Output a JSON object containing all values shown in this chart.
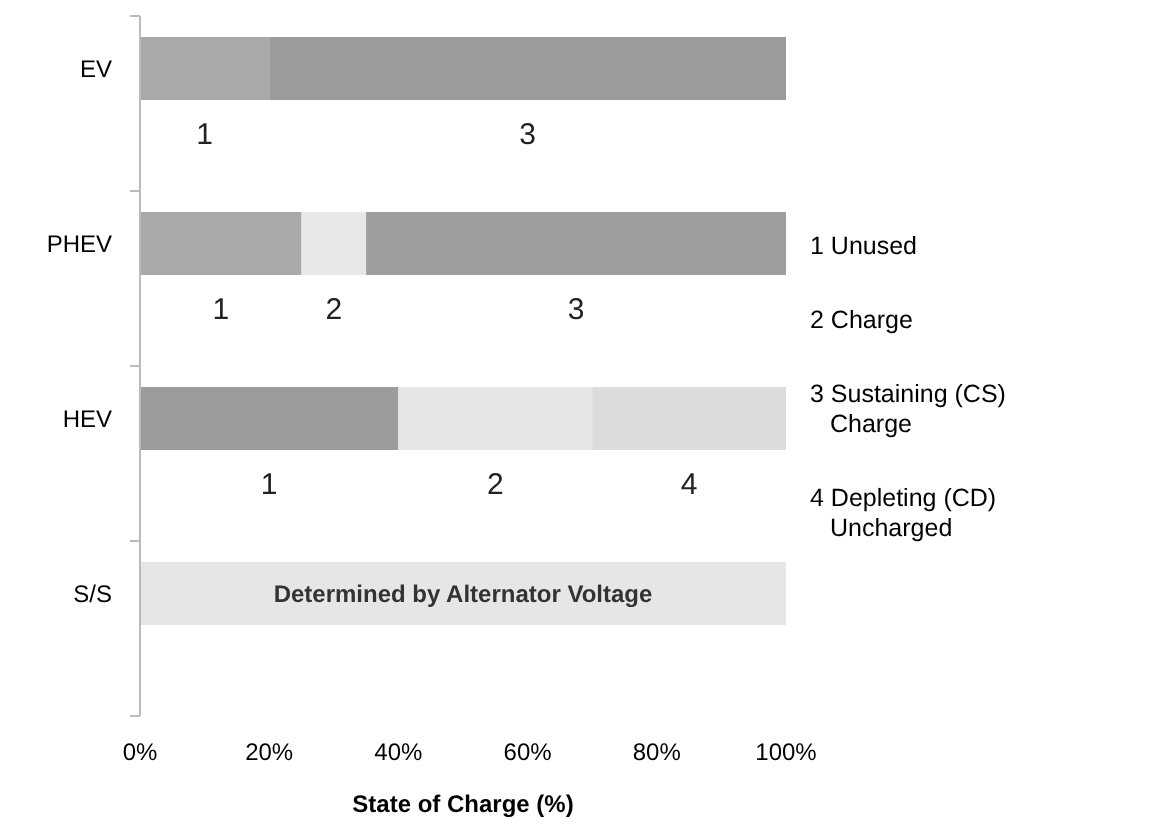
{
  "chart_data": {
    "type": "bar",
    "orientation": "horizontal",
    "stacked": true,
    "xlabel": "State of Charge (%)",
    "categories": [
      "EV",
      "PHEV",
      "HEV",
      "S/S"
    ],
    "series": [
      {
        "colors": [
          "#a9a9a9",
          "#aaaaaa",
          "#9c9c9c",
          null
        ],
        "values": [
          20,
          25,
          40,
          null
        ]
      },
      {
        "colors": [
          null,
          "#e8e8e8",
          "#e6e6e6",
          null
        ],
        "values": [
          null,
          10,
          30,
          null
        ]
      },
      {
        "colors": [
          "#9b9b9b",
          "#9e9e9e",
          null,
          null
        ],
        "values": [
          80,
          65,
          null,
          null
        ]
      },
      {
        "colors": [
          null,
          null,
          "#dcdcdc",
          null
        ],
        "values": [
          null,
          null,
          30,
          null
        ]
      },
      {
        "colors": [
          null,
          null,
          null,
          "#e6e6e6"
        ],
        "values": [
          null,
          null,
          null,
          100
        ]
      }
    ],
    "xlim": [
      0,
      100
    ],
    "xticks": [
      {
        "value": 0,
        "label": "0%"
      },
      {
        "value": 20,
        "label": "20%"
      },
      {
        "value": 40,
        "label": "40%"
      },
      {
        "value": 60,
        "label": "60%"
      },
      {
        "value": 80,
        "label": "80%"
      },
      {
        "value": 100,
        "label": "100%"
      }
    ],
    "grid": false,
    "annotations": [
      "1",
      "3",
      "1",
      "2",
      "3",
      "1",
      "2",
      "4",
      "Determined by Alternator Voltage",
      "1 Unused",
      "2 Charge",
      "3 Sustaining (CS) Charge",
      "4 Depleting (CD) Uncharged"
    ]
  }
}
